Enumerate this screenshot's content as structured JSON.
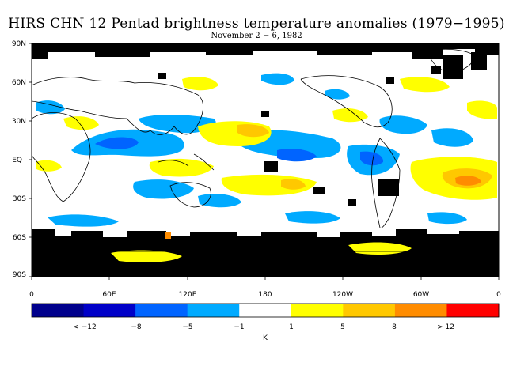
{
  "title": "HIRS CHN 12 Pentad brightness temperature anomalies (1979−1995)",
  "subtitle": "November 2 − 6, 1982",
  "map": {
    "lat_labels": [
      "90N",
      "60N",
      "30N",
      "EQ",
      "30S",
      "60S",
      "90S"
    ],
    "lon_labels": [
      "0",
      "60E",
      "120E",
      "180",
      "120W",
      "60W",
      "0"
    ]
  },
  "legend": {
    "unit": "K",
    "labels": [
      "< −12",
      "−8",
      "−5",
      "−1",
      "1",
      "5",
      "8",
      "> 12"
    ],
    "colors": [
      "#00008c",
      "#0000c8",
      "#0064ff",
      "#00aaff",
      "#ffffff",
      "#ffff00",
      "#ffc800",
      "#ff8c00",
      "#ff0000"
    ]
  }
}
